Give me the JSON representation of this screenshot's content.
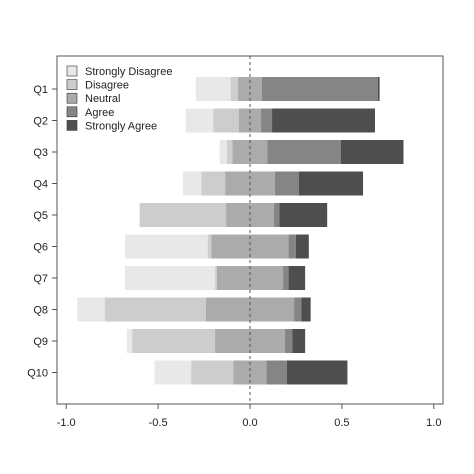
{
  "chart_data": {
    "type": "bar",
    "orientation": "horizontal",
    "stacked": "diverging",
    "categories": [
      "Q1",
      "Q2",
      "Q3",
      "Q4",
      "Q5",
      "Q6",
      "Q7",
      "Q8",
      "Q9",
      "Q10"
    ],
    "series": [
      {
        "name": "Strongly Disagree",
        "color": "#e8e8e8",
        "values": [
          0.19,
          0.15,
          0.04,
          0.1,
          0.0,
          0.45,
          0.49,
          0.15,
          0.03,
          0.2
        ]
      },
      {
        "name": "Disagree",
        "color": "#cdcdcd",
        "values": [
          0.04,
          0.14,
          0.03,
          0.13,
          0.47,
          0.02,
          0.01,
          0.55,
          0.45,
          0.23
        ]
      },
      {
        "name": "Neutral",
        "color": "#ababab",
        "values": [
          0.13,
          0.12,
          0.19,
          0.27,
          0.26,
          0.42,
          0.36,
          0.48,
          0.38,
          0.18
        ]
      },
      {
        "name": "Agree",
        "color": "#858585",
        "values": [
          0.63,
          0.06,
          0.4,
          0.13,
          0.03,
          0.04,
          0.03,
          0.04,
          0.04,
          0.11
        ]
      },
      {
        "name": "Strongly Agree",
        "color": "#4e4e4e",
        "values": [
          0.01,
          0.56,
          0.34,
          0.35,
          0.26,
          0.07,
          0.09,
          0.05,
          0.07,
          0.33
        ]
      }
    ],
    "xlim": [
      -1.05,
      1.05
    ],
    "xticks": [
      -1.0,
      -0.5,
      0.0,
      0.5,
      1.0
    ],
    "xtick_labels": [
      "-1.0",
      "-0.5",
      "0.0",
      "0.5",
      "1.0"
    ],
    "reference_line": {
      "x": 0,
      "style": "dashed"
    },
    "legend_position": "top-left",
    "grid": false,
    "title": "",
    "xlabel": "",
    "ylabel": ""
  }
}
